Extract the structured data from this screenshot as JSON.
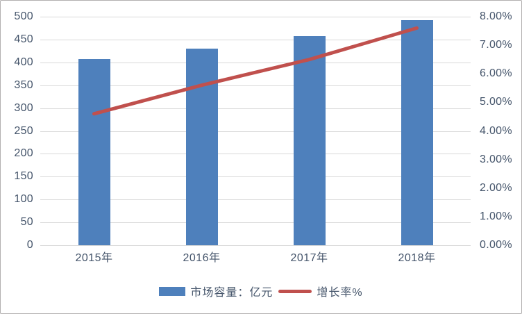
{
  "chart_data": {
    "type": "bar",
    "subtype": "bar-line-combo",
    "categories": [
      "2015年",
      "2016年",
      "2017年",
      "2018年"
    ],
    "series": [
      {
        "name": "市场容量：亿元",
        "type": "bar",
        "axis": "left",
        "values": [
          407,
          430,
          458,
          493
        ]
      },
      {
        "name": "增长率%",
        "type": "line",
        "axis": "right",
        "values": [
          4.6,
          5.6,
          6.5,
          7.6
        ],
        "unit": "%"
      }
    ],
    "left_axis": {
      "min": 0,
      "max": 500,
      "step": 50,
      "ticks": [
        "500",
        "450",
        "400",
        "350",
        "300",
        "250",
        "200",
        "150",
        "100",
        "50",
        "0"
      ]
    },
    "right_axis": {
      "min": 0,
      "max": 8,
      "step": 1,
      "ticks": [
        "8.00%",
        "7.00%",
        "6.00%",
        "5.00%",
        "4.00%",
        "3.00%",
        "2.00%",
        "1.00%",
        "0.00%"
      ]
    },
    "grid": "horizontal",
    "legend_position": "bottom"
  },
  "colors": {
    "bar": "#4e80bc",
    "line": "#c0504d",
    "gridline": "#d9d9d9",
    "text": "#44546a",
    "border": "#b2afaf",
    "background": "#ffffff"
  }
}
